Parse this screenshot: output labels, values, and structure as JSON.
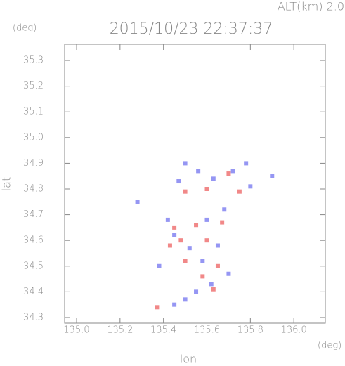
{
  "chart_data": {
    "type": "scatter",
    "title": "2015/10/23 22:37:37",
    "altitude_label": "ALT(km) 2.0",
    "y_unit": "(deg)",
    "x_unit": "(deg)",
    "x_label": "lon",
    "y_label": "lat",
    "xlim": [
      134.945,
      136.145
    ],
    "ylim": [
      34.278,
      35.363
    ],
    "xticks": [
      {
        "value": 135.0,
        "label": "135.0"
      },
      135.2,
      135.4,
      135.6,
      135.8,
      {
        "value": 136.0,
        "label": "136.0"
      }
    ],
    "yticks": [
      35.3,
      35.2,
      35.1,
      {
        "value": 35.0,
        "label": "35.0"
      },
      34.9,
      34.8,
      34.7,
      34.6,
      34.5,
      34.4,
      34.3
    ],
    "series": [
      {
        "color": "#7a7cf0",
        "x": [
          135.5,
          135.56,
          135.78,
          135.72,
          135.47,
          135.63,
          135.42,
          135.45,
          135.6,
          135.68,
          135.52,
          135.65,
          135.58,
          135.7,
          135.62,
          135.55,
          135.5,
          135.45,
          135.38,
          135.8,
          135.9,
          135.28
        ],
        "values": [
          34.9,
          34.87,
          34.9,
          34.87,
          34.83,
          34.84,
          34.68,
          34.62,
          34.68,
          34.72,
          34.57,
          34.58,
          34.52,
          34.47,
          34.43,
          34.4,
          34.37,
          34.35,
          34.5,
          34.81,
          34.85,
          34.75
        ]
      },
      {
        "color": "#ee6a6a",
        "x": [
          135.37,
          135.6,
          135.5,
          135.75,
          135.45,
          135.55,
          135.67,
          135.48,
          135.6,
          135.5,
          135.65,
          135.58,
          135.63,
          135.7,
          135.43
        ],
        "values": [
          34.34,
          34.8,
          34.79,
          34.79,
          34.65,
          34.66,
          34.67,
          34.6,
          34.6,
          34.52,
          34.5,
          34.46,
          34.41,
          34.86,
          34.58
        ]
      }
    ]
  }
}
